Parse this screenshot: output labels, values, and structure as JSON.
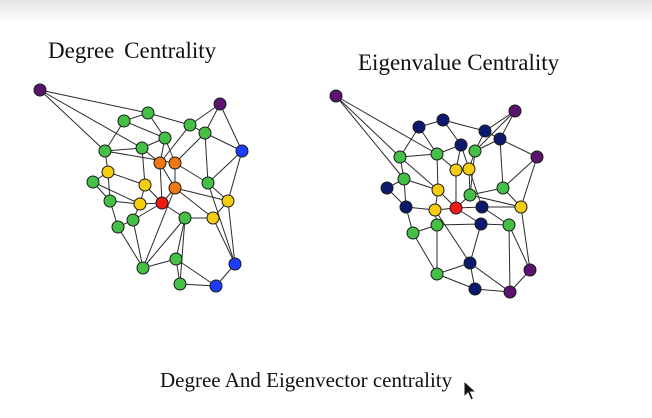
{
  "titles": {
    "degree": "Degree  Centrality",
    "eigen": "Eigenvalue Centrality",
    "caption": "Degree And Eigenvector centrality"
  },
  "colors": {
    "purple": "#5a146e",
    "blue": "#1b3dff",
    "navy": "#0c1a6e",
    "green": "#45c046",
    "yellow": "#f5cc10",
    "orange": "#f07814",
    "red": "#f01a14",
    "edge": "#2a2a2a"
  },
  "icons": {
    "cursor": "mouse-pointer-icon"
  }
}
